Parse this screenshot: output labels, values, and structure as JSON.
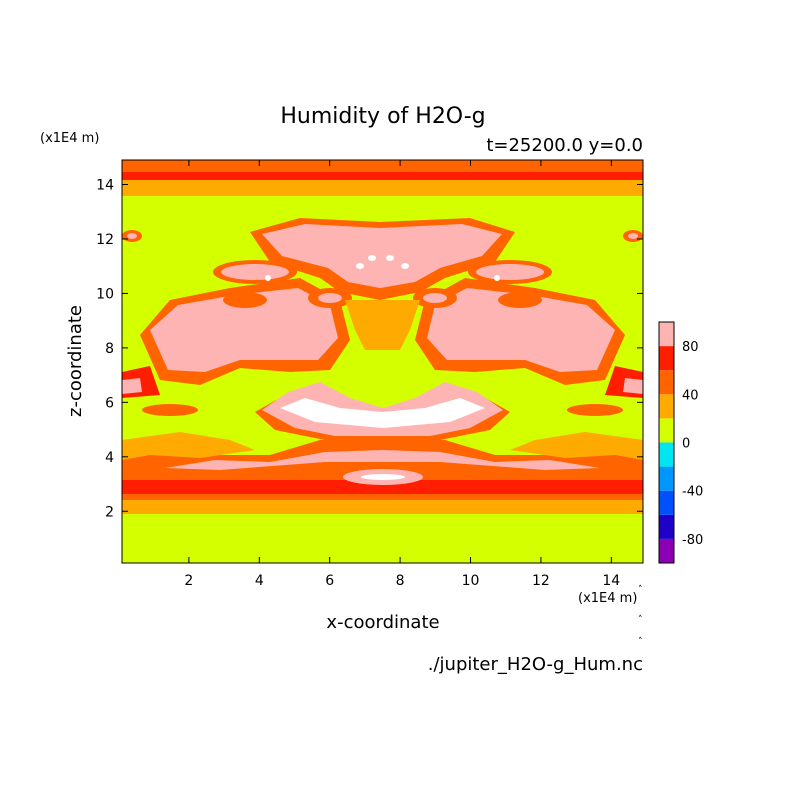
{
  "chart_data": {
    "type": "heatmap",
    "title": "Humidity of H2O-g",
    "subtitle": "t=25200.0 y=0.0",
    "xlabel": "x-coordinate",
    "ylabel": "z-coordinate",
    "x_unit": "(x1E4 m)",
    "y_unit": "(x1E4 m)",
    "xlim": [
      0.1,
      14.9
    ],
    "ylim": [
      0.1,
      14.9
    ],
    "xticks": [
      2,
      4,
      6,
      8,
      10,
      12,
      14
    ],
    "yticks": [
      2,
      4,
      6,
      8,
      10,
      12,
      14
    ],
    "colorbar": {
      "levels": [
        -100,
        -80,
        -60,
        -40,
        -20,
        0,
        20,
        40,
        60,
        80,
        100
      ],
      "colors": [
        "#8b00b4",
        "#1e00c8",
        "#0050ff",
        "#0096ff",
        "#00e6f0",
        "#d4ff00",
        "#ffaa00",
        "#ff6400",
        "#ff1e00",
        "#ffb4b4"
      ],
      "tick_labels": [
        "-80",
        "-40",
        "0",
        "40",
        "80"
      ],
      "tick_values": [
        -80,
        -40,
        0,
        40,
        80
      ]
    },
    "colors": {
      "c0": "#d4ff00",
      "c20": "#ffaa00",
      "c40": "#ff6400",
      "c60": "#ff1e00",
      "c80": "#ffb4b4",
      "c100": "#ffffff"
    },
    "grid": false
  },
  "footer": {
    "filename": "./jupiter_H2O-g_Hum.nc"
  }
}
